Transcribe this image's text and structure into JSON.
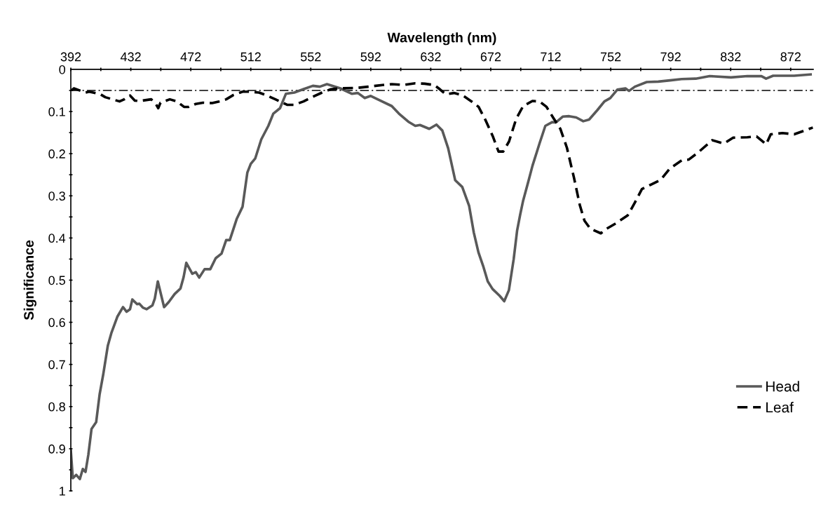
{
  "chart_data": {
    "type": "line",
    "xlabel": "Wavelength (nm)",
    "ylabel": "Significance",
    "xlim": [
      392,
      887
    ],
    "ylim": [
      1,
      0
    ],
    "xticks": [
      392,
      {
        "value": 412,
        "label": null
      },
      432,
      {
        "value": 452,
        "label": null
      },
      472,
      {
        "value": 492,
        "label": null
      },
      512,
      {
        "value": 532,
        "label": null
      },
      552,
      {
        "value": 572,
        "label": null
      },
      592,
      {
        "value": 612,
        "label": null
      },
      632,
      {
        "value": 652,
        "label": null
      },
      672,
      {
        "value": 692,
        "label": null
      },
      712,
      {
        "value": 732,
        "label": null
      },
      752,
      {
        "value": 772,
        "label": null
      },
      792,
      {
        "value": 812,
        "label": null
      },
      832,
      {
        "value": 852,
        "label": null
      },
      872
    ],
    "yticks": [
      0,
      {
        "value": 0.05,
        "label": null
      },
      0.1,
      {
        "value": 0.15,
        "label": null
      },
      0.2,
      {
        "value": 0.25,
        "label": null
      },
      0.3,
      {
        "value": 0.35,
        "label": null
      },
      0.4,
      {
        "value": 0.45,
        "label": null
      },
      0.5,
      {
        "value": 0.55,
        "label": null
      },
      0.6,
      {
        "value": 0.65,
        "label": null
      },
      0.7,
      {
        "value": 0.75,
        "label": null
      },
      0.8,
      {
        "value": 0.85,
        "label": null
      },
      0.9,
      {
        "value": 0.95,
        "label": null
      },
      1
    ],
    "grid": false,
    "legend": "right",
    "marker": "none",
    "ref_lines": [
      {
        "axis": "y",
        "value": 0.05,
        "color": "#000000",
        "line_style": "dashdot"
      }
    ],
    "series": [
      {
        "name": "Head",
        "color": "#595959",
        "line_style": "solid",
        "x": [
          392,
          393.3,
          395.6,
          398,
          400,
          401.8,
          403.7,
          405.8,
          408.9,
          411.2,
          413.6,
          416.7,
          419,
          423,
          426.8,
          429.2,
          431.5,
          433,
          436.2,
          437.7,
          440,
          442.5,
          446.4,
          448,
          450,
          454.2,
          457.3,
          461.2,
          465.1,
          467.2,
          469,
          473,
          475.3,
          477.6,
          481.2,
          485,
          488.6,
          492.5,
          495.6,
          498,
          502.6,
          506.5,
          509.7,
          512,
          515,
          519,
          523.7,
          527,
          531.5,
          535.4,
          541,
          547,
          553.4,
          558,
          562.8,
          571.7,
          579.5,
          583.4,
          588,
          592,
          598.3,
          606,
          610.8,
          617,
          621.7,
          624.8,
          631,
          635.8,
          639.7,
          643.6,
          648.3,
          653,
          657.6,
          660.7,
          663.8,
          666.9,
          670,
          673.2,
          677.9,
          681,
          684.1,
          687.3,
          689.6,
          691.6,
          693.5,
          696.7,
          699.8,
          704.5,
          708.4,
          713,
          715.4,
          720,
          724.3,
          729,
          733.7,
          737.6,
          743,
          747.8,
          751.7,
          756.4,
          761.8,
          764.2,
          768.1,
          776,
          783.7,
          791.5,
          799.3,
          808.7,
          818,
          832.2,
          843.1,
          852.5,
          855.6,
          860.3,
          874.3,
          885.3
        ],
        "values": [
          0.903,
          0.97,
          0.962,
          0.972,
          0.948,
          0.955,
          0.914,
          0.853,
          0.837,
          0.771,
          0.724,
          0.655,
          0.626,
          0.587,
          0.564,
          0.575,
          0.569,
          0.546,
          0.557,
          0.556,
          0.565,
          0.569,
          0.56,
          0.544,
          0.503,
          0.564,
          0.552,
          0.533,
          0.52,
          0.493,
          0.459,
          0.485,
          0.481,
          0.494,
          0.474,
          0.474,
          0.448,
          0.437,
          0.405,
          0.405,
          0.355,
          0.326,
          0.245,
          0.224,
          0.211,
          0.166,
          0.134,
          0.105,
          0.092,
          0.058,
          0.055,
          0.047,
          0.039,
          0.041,
          0.035,
          0.045,
          0.058,
          0.056,
          0.068,
          0.063,
          0.074,
          0.087,
          0.105,
          0.124,
          0.134,
          0.132,
          0.141,
          0.131,
          0.145,
          0.187,
          0.263,
          0.279,
          0.324,
          0.387,
          0.434,
          0.466,
          0.503,
          0.521,
          0.537,
          0.55,
          0.524,
          0.45,
          0.382,
          0.345,
          0.313,
          0.271,
          0.229,
          0.176,
          0.134,
          0.125,
          0.126,
          0.112,
          0.111,
          0.114,
          0.123,
          0.119,
          0.097,
          0.076,
          0.068,
          0.048,
          0.045,
          0.051,
          0.041,
          0.03,
          0.029,
          0.026,
          0.023,
          0.022,
          0.016,
          0.019,
          0.016,
          0.016,
          0.022,
          0.015,
          0.015,
          0.012
        ]
      },
      {
        "name": "Leaf",
        "color": "#000000",
        "line_style": "dashed",
        "x": [
          392.5,
          394,
          401.8,
          404.2,
          411.2,
          415,
          419.8,
          424.5,
          427.6,
          431.5,
          434.7,
          437.8,
          445.6,
          448.7,
          450.3,
          451.8,
          458,
          462.8,
          467.5,
          470.6,
          475.3,
          480,
          486.2,
          490.9,
          495.6,
          500.3,
          506.5,
          511.2,
          517.5,
          522.2,
          528.4,
          536.2,
          540.9,
          547.2,
          553.4,
          559.5,
          565.4,
          571.7,
          582.6,
          590.4,
          599.8,
          606,
          613.9,
          621.7,
          628,
          634.2,
          637.3,
          642,
          647.5,
          653,
          659.2,
          663.9,
          668.6,
          673.3,
          677.2,
          680.3,
          684.2,
          688.9,
          693.6,
          699.8,
          704.5,
          709.2,
          713.9,
          718.4,
          722.8,
          727.5,
          731.4,
          734.5,
          738.4,
          745.4,
          749.3,
          755.6,
          763.4,
          768.1,
          772.8,
          779,
          785.3,
          791.5,
          799.3,
          804,
          810.3,
          816.5,
          819.7,
          827.5,
          833.7,
          843.1,
          849.3,
          854,
          855.6,
          858.7,
          866.5,
          874.3,
          880.6,
          886.8
        ],
        "values": [
          0.05,
          0.045,
          0.055,
          0.053,
          0.058,
          0.066,
          0.071,
          0.076,
          0.071,
          0.062,
          0.074,
          0.075,
          0.071,
          0.082,
          0.092,
          0.079,
          0.071,
          0.076,
          0.089,
          0.089,
          0.082,
          0.079,
          0.08,
          0.076,
          0.071,
          0.061,
          0.053,
          0.053,
          0.055,
          0.061,
          0.071,
          0.084,
          0.084,
          0.076,
          0.065,
          0.055,
          0.047,
          0.045,
          0.044,
          0.041,
          0.037,
          0.035,
          0.037,
          0.033,
          0.034,
          0.037,
          0.045,
          0.059,
          0.056,
          0.061,
          0.076,
          0.089,
          0.121,
          0.158,
          0.195,
          0.195,
          0.171,
          0.118,
          0.087,
          0.075,
          0.076,
          0.089,
          0.116,
          0.141,
          0.186,
          0.257,
          0.322,
          0.359,
          0.378,
          0.389,
          0.378,
          0.365,
          0.346,
          0.316,
          0.284,
          0.273,
          0.262,
          0.235,
          0.216,
          0.214,
          0.197,
          0.178,
          0.168,
          0.176,
          0.162,
          0.161,
          0.159,
          0.173,
          0.178,
          0.154,
          0.151,
          0.154,
          0.146,
          0.138
        ]
      }
    ]
  }
}
